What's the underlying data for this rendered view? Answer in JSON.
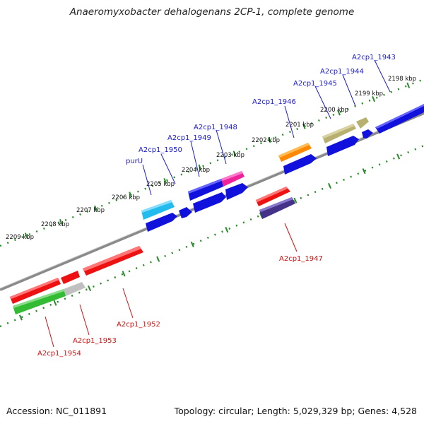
{
  "title": "Anaeromyxobacter dehalogenans 2CP-1, complete genome",
  "accession": "Accession: NC_011891",
  "summary": "Topology: circular; Length: 5,029,329 bp; Genes: 4,528",
  "colors": {
    "top_label": "#1a1acc",
    "bottom_label": "#cc1111",
    "backbone": "#8a8a8a",
    "ticks": "#2a8a2a"
  },
  "ruler_labels": [
    "2198 kbp",
    "2199 kbp",
    "2200 kbp",
    "2201 kbp",
    "2202 kbp",
    "2203 kbp",
    "2204 kbp",
    "2205 kbp",
    "2206 kbp",
    "2207 kbp",
    "2208 kbp",
    "2209 kbp"
  ],
  "gene_labels_top": [
    "A2cp1_1943",
    "A2cp1_1944",
    "A2cp1_1945",
    "A2cp1_1946",
    "A2cp1_1948",
    "A2cp1_1949",
    "A2cp1_1950",
    "purU"
  ],
  "gene_labels_bottom": [
    "A2cp1_1947",
    "A2cp1_1952",
    "A2cp1_1953",
    "A2cp1_1954"
  ],
  "feature_colors": {
    "blue": "#1111dd",
    "red": "#ee1111",
    "olive": "#b8b070",
    "orange": "#ff8800",
    "magenta": "#ee2299",
    "cyan": "#22bbee",
    "navy": "#443388",
    "green": "#33bb33",
    "gray": "#c0c0c0"
  }
}
